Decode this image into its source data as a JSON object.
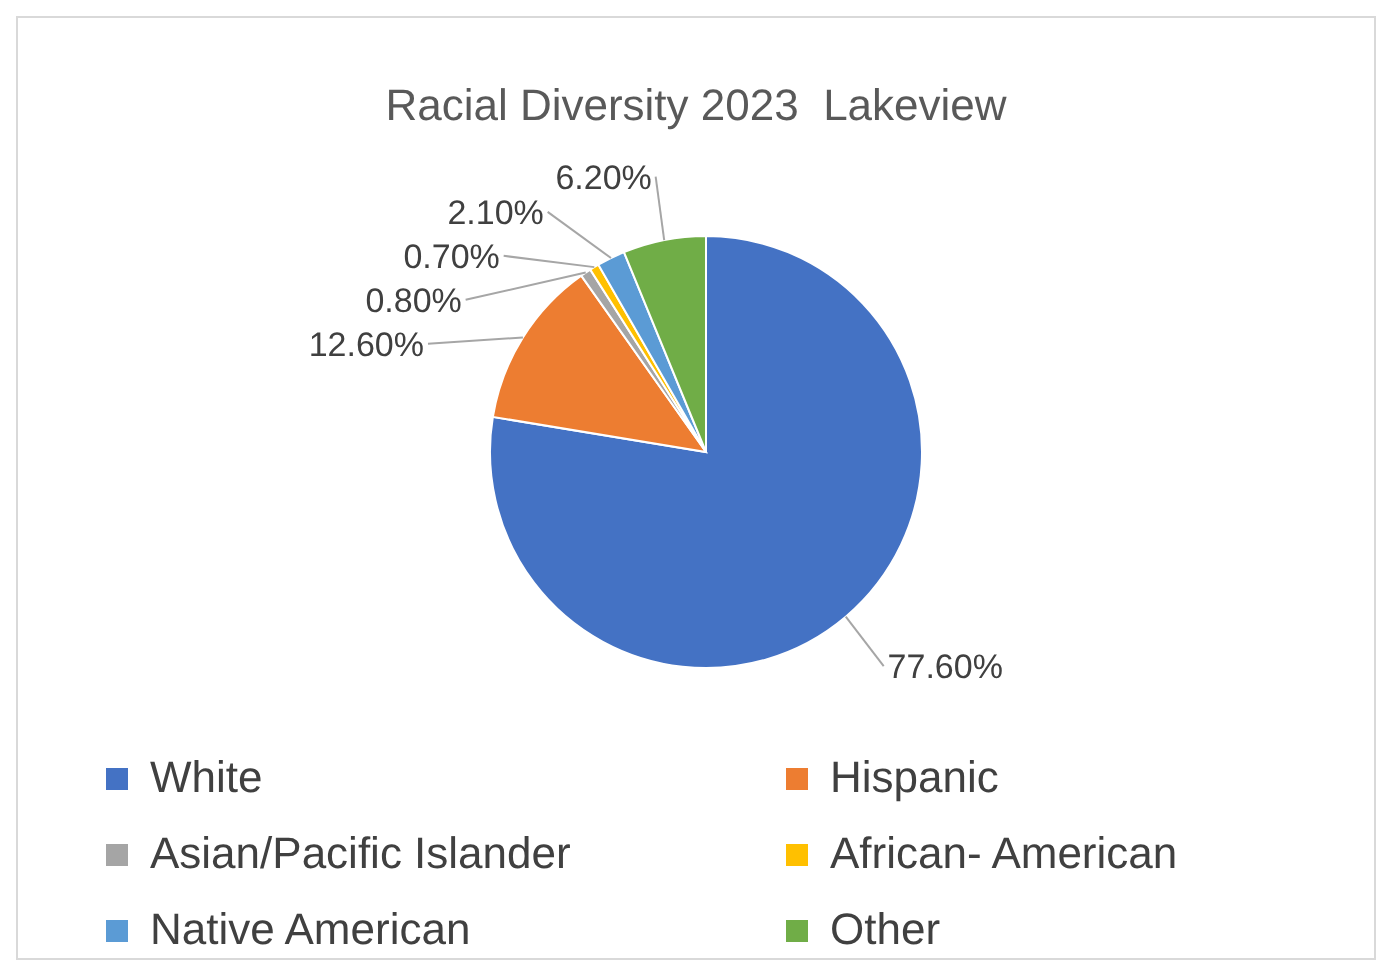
{
  "chart_data": {
    "type": "pie",
    "title": "Racial Diversity 2023  Lakeview",
    "categories": [
      "White",
      "Hispanic",
      "Asian/Pacific Islander",
      "African- American",
      "Native American",
      "Other"
    ],
    "values": [
      77.6,
      12.6,
      0.8,
      0.7,
      2.1,
      6.2
    ],
    "value_labels": [
      "77.60%",
      "12.60%",
      "0.80%",
      "0.70%",
      "2.10%",
      "6.20%"
    ],
    "colors": [
      "#4472c4",
      "#ed7d31",
      "#a5a5a5",
      "#ffc000",
      "#5b9bd5",
      "#70ad47"
    ],
    "legend": "bottom"
  }
}
